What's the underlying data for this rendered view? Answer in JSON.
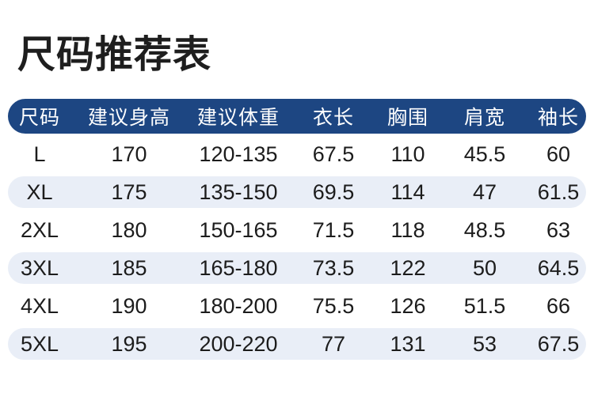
{
  "title": "尺码推荐表",
  "colors": {
    "header_bg": "#1d4682",
    "header_text": "#ffffff",
    "band_bg": "#e9eef7",
    "title_color": "#1e1e1e",
    "text_color": "#1c1c1c"
  },
  "chart_data": {
    "type": "table",
    "title": "尺码推荐表",
    "columns": [
      "尺码",
      "建议身高",
      "建议体重",
      "衣长",
      "胸围",
      "肩宽",
      "袖长"
    ],
    "rows": [
      [
        "L",
        "170",
        "120-135",
        "67.5",
        "110",
        "45.5",
        "60"
      ],
      [
        "XL",
        "175",
        "135-150",
        "69.5",
        "114",
        "47",
        "61.5"
      ],
      [
        "2XL",
        "180",
        "150-165",
        "71.5",
        "118",
        "48.5",
        "63"
      ],
      [
        "3XL",
        "185",
        "165-180",
        "73.5",
        "122",
        "50",
        "64.5"
      ],
      [
        "4XL",
        "190",
        "180-200",
        "75.5",
        "126",
        "51.5",
        "66"
      ],
      [
        "5XL",
        "195",
        "200-220",
        "77",
        "131",
        "53",
        "67.5"
      ]
    ],
    "layout": {
      "banded_row_indices": [
        1,
        3,
        5
      ],
      "header_style": "navy pill full-width",
      "band_style": "pale blue pill full-width"
    }
  }
}
